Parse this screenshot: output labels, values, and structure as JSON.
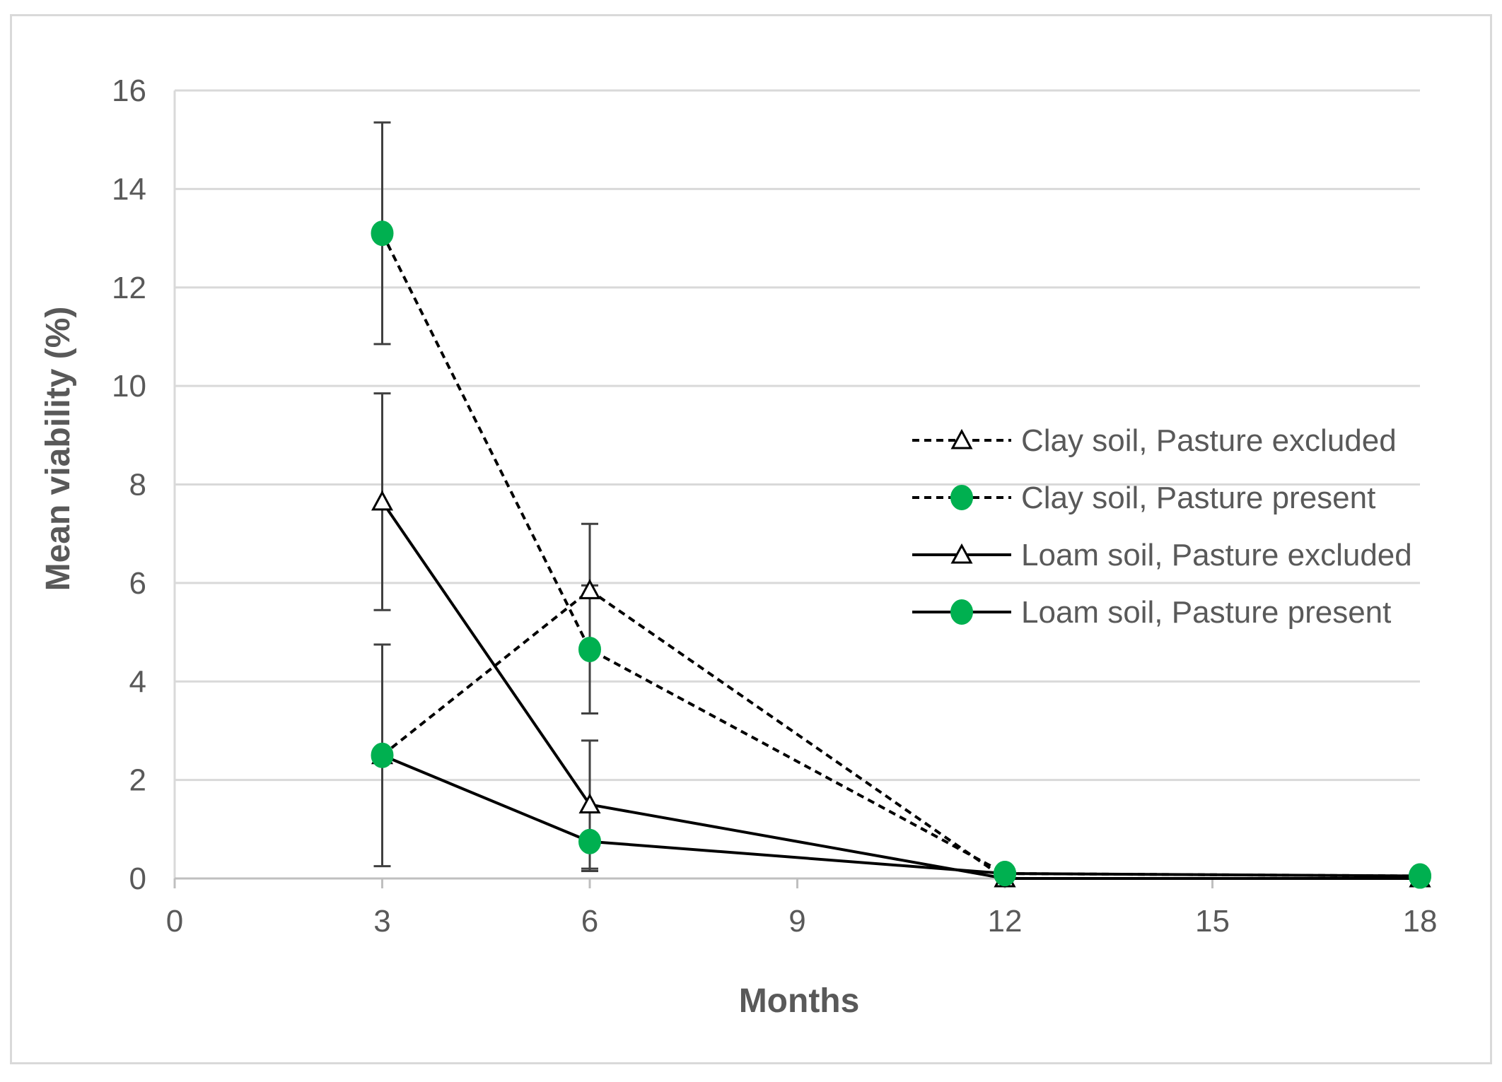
{
  "chart_data": {
    "type": "line",
    "title": "",
    "xlabel": "Months",
    "ylabel": "Mean viability (%)",
    "xlim": [
      0,
      18
    ],
    "ylim": [
      0,
      16
    ],
    "x_ticks": [
      0,
      3,
      6,
      9,
      12,
      15,
      18
    ],
    "y_ticks": [
      0,
      2,
      4,
      6,
      8,
      10,
      12,
      14,
      16
    ],
    "grid": "horizontal",
    "legend_position": "right",
    "series": [
      {
        "name": "Clay soil, Pasture excluded",
        "line_style": "dashed",
        "marker": "open-triangle",
        "color": "#000000",
        "x": [
          3,
          6,
          12,
          18
        ],
        "y": [
          2.5,
          5.85,
          0.0,
          0.0
        ],
        "error": [
          null,
          1.35,
          null,
          null
        ]
      },
      {
        "name": "Clay soil,  Pasture present",
        "line_style": "dashed",
        "marker": "filled-circle",
        "color": "#00b050",
        "x": [
          3,
          6,
          12,
          18
        ],
        "y": [
          13.1,
          4.65,
          0.1,
          0.05
        ],
        "error": [
          2.25,
          1.3,
          null,
          null
        ]
      },
      {
        "name": "Loam soil,  Pasture excluded",
        "line_style": "solid",
        "marker": "open-triangle",
        "color": "#000000",
        "x": [
          3,
          6,
          12,
          18
        ],
        "y": [
          7.65,
          1.5,
          0.0,
          0.0
        ],
        "error": [
          2.2,
          1.3,
          null,
          null
        ]
      },
      {
        "name": "Loam soil,  Pasture present",
        "line_style": "solid",
        "marker": "filled-circle",
        "color": "#00b050",
        "x": [
          3,
          6,
          12,
          18
        ],
        "y": [
          2.5,
          0.75,
          0.1,
          0.05
        ],
        "error": [
          2.25,
          0.6,
          null,
          null
        ]
      }
    ]
  }
}
